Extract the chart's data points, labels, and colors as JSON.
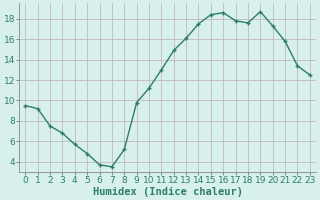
{
  "x": [
    0,
    1,
    2,
    3,
    4,
    5,
    6,
    7,
    8,
    9,
    10,
    11,
    12,
    13,
    14,
    15,
    16,
    17,
    18,
    19,
    20,
    21,
    22,
    23
  ],
  "y": [
    9.5,
    9.2,
    7.5,
    6.8,
    5.7,
    4.8,
    3.7,
    3.5,
    5.2,
    9.8,
    11.2,
    13.0,
    14.9,
    16.1,
    17.5,
    18.4,
    18.6,
    17.8,
    17.6,
    18.7,
    17.3,
    15.8,
    13.4,
    12.5
  ],
  "line_color": "#2d7d6e",
  "marker_color": "#2d7d6e",
  "bg_color": "#d8f0ec",
  "grid_color": "#c0b8bc",
  "spine_color": "#888888",
  "xlabel": "Humidex (Indice chaleur)",
  "xlim": [
    -0.5,
    23.5
  ],
  "ylim": [
    3.0,
    19.5
  ],
  "yticks": [
    4,
    6,
    8,
    10,
    12,
    14,
    16,
    18
  ],
  "xticks": [
    0,
    1,
    2,
    3,
    4,
    5,
    6,
    7,
    8,
    9,
    10,
    11,
    12,
    13,
    14,
    15,
    16,
    17,
    18,
    19,
    20,
    21,
    22,
    23
  ],
  "xlabel_fontsize": 7.5,
  "tick_fontsize": 6.5,
  "marker_size": 3.0,
  "line_width": 1.0
}
